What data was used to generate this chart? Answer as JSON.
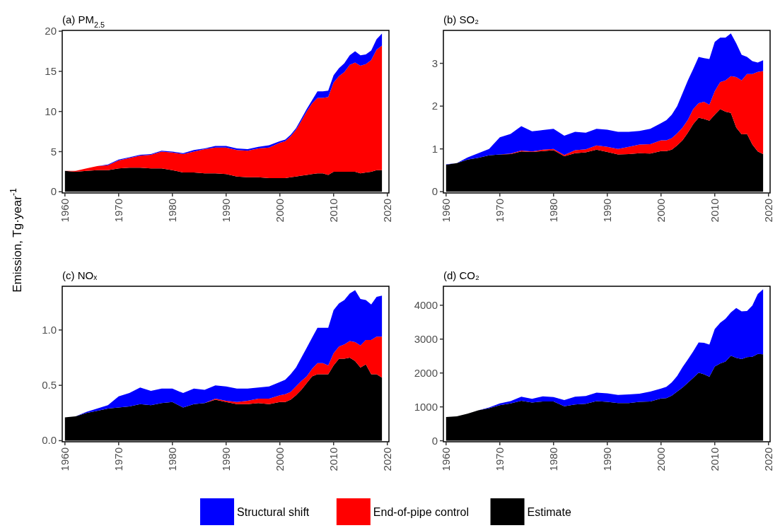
{
  "chart_data": [
    {
      "type": "area",
      "stacked": true,
      "title": "(a) PM$_{2.5}$",
      "ylabel": "Emission, Tg·year$^{-1}$",
      "legend": "bottom",
      "x": [
        1960,
        1962,
        1964,
        1966,
        1968,
        1970,
        1972,
        1974,
        1976,
        1978,
        1980,
        1982,
        1984,
        1986,
        1988,
        1990,
        1992,
        1994,
        1996,
        1998,
        2000,
        2001,
        2002,
        2003,
        2004,
        2005,
        2006,
        2007,
        2008,
        2009,
        2010,
        2011,
        2012,
        2013,
        2014,
        2015,
        2016,
        2017,
        2018,
        2019
      ],
      "xlim": [
        1959.5,
        2020.3
      ],
      "xticks": [
        1960,
        1970,
        1980,
        1990,
        2000,
        2010,
        2020
      ],
      "ylim": [
        -0.15,
        20.1
      ],
      "yticks": [
        0,
        5,
        10,
        15,
        20
      ],
      "series": [
        {
          "name": "Estimate",
          "color": "#000000",
          "values": [
            2.6,
            2.5,
            2.6,
            2.7,
            2.7,
            2.9,
            3.0,
            3.0,
            2.9,
            2.9,
            2.7,
            2.4,
            2.4,
            2.3,
            2.3,
            2.2,
            1.9,
            1.8,
            1.8,
            1.7,
            1.7,
            1.7,
            1.8,
            1.9,
            2.0,
            2.1,
            2.2,
            2.3,
            2.3,
            2.1,
            2.5,
            2.5,
            2.5,
            2.5,
            2.5,
            2.3,
            2.4,
            2.5,
            2.7,
            2.7
          ]
        },
        {
          "name": "End-of-pipe control",
          "color": "#ff0000",
          "values": [
            0,
            0.1,
            0.3,
            0.5,
            0.6,
            1.0,
            1.2,
            1.5,
            1.7,
            2.1,
            2.2,
            2.3,
            2.6,
            3.0,
            3.2,
            3.3,
            3.3,
            3.3,
            3.6,
            3.8,
            4.4,
            4.6,
            5.1,
            5.8,
            6.8,
            7.9,
            8.8,
            9.4,
            9.4,
            9.7,
            11.1,
            11.9,
            12.4,
            13.3,
            13.6,
            13.4,
            13.5,
            13.9,
            15.0,
            15.5
          ]
        },
        {
          "name": "Structural shift",
          "color": "#0000ff",
          "values": [
            0,
            0,
            0,
            0,
            0.1,
            0.1,
            0.1,
            0.1,
            0.1,
            0.1,
            0.1,
            0.1,
            0.2,
            0.1,
            0.2,
            0.2,
            0.2,
            0.2,
            0.2,
            0.3,
            0.2,
            0.2,
            0.2,
            0.2,
            0.3,
            0.3,
            0.4,
            0.8,
            0.8,
            0.8,
            0.9,
            1.0,
            1.1,
            1.2,
            1.4,
            1.3,
            1.2,
            1.2,
            1.3,
            1.5
          ]
        }
      ]
    },
    {
      "type": "area",
      "stacked": true,
      "title": "(b) SO₂",
      "x": [
        1960,
        1962,
        1964,
        1966,
        1968,
        1970,
        1972,
        1974,
        1976,
        1978,
        1980,
        1982,
        1984,
        1986,
        1988,
        1990,
        1992,
        1994,
        1996,
        1998,
        2000,
        2001,
        2002,
        2003,
        2004,
        2005,
        2006,
        2007,
        2008,
        2009,
        2010,
        2011,
        2012,
        2013,
        2014,
        2015,
        2016,
        2017,
        2018,
        2019
      ],
      "xlim": [
        1959.5,
        2020.3
      ],
      "xticks": [
        1960,
        1970,
        1980,
        1990,
        2000,
        2010,
        2020
      ],
      "ylim": [
        -0.03,
        3.77
      ],
      "yticks": [
        0,
        1,
        2,
        3
      ],
      "series": [
        {
          "color": "#000000",
          "values": [
            0.63,
            0.67,
            0.75,
            0.79,
            0.85,
            0.87,
            0.88,
            0.94,
            0.93,
            0.95,
            0.97,
            0.83,
            0.9,
            0.92,
            0.98,
            0.93,
            0.87,
            0.88,
            0.9,
            0.89,
            0.95,
            0.95,
            0.98,
            1.08,
            1.2,
            1.38,
            1.58,
            1.73,
            1.7,
            1.66,
            1.8,
            1.93,
            1.87,
            1.84,
            1.5,
            1.34,
            1.35,
            1.1,
            0.94,
            0.88
          ]
        },
        {
          "color": "#ff0000",
          "values": [
            0,
            0,
            0,
            0,
            0,
            0,
            0.01,
            0.02,
            0.01,
            0.03,
            0.03,
            0.03,
            0.07,
            0.07,
            0.1,
            0.12,
            0.13,
            0.17,
            0.2,
            0.22,
            0.25,
            0.25,
            0.27,
            0.28,
            0.3,
            0.3,
            0.35,
            0.34,
            0.4,
            0.37,
            0.55,
            0.63,
            0.73,
            0.86,
            1.18,
            1.26,
            1.4,
            1.65,
            1.86,
            1.94
          ]
        },
        {
          "color": "#0000ff",
          "values": [
            0.01,
            0,
            0.05,
            0.11,
            0.15,
            0.4,
            0.46,
            0.57,
            0.47,
            0.46,
            0.47,
            0.45,
            0.43,
            0.39,
            0.39,
            0.4,
            0.4,
            0.35,
            0.32,
            0.36,
            0.4,
            0.47,
            0.55,
            0.64,
            0.8,
            0.92,
            0.94,
            1.08,
            1.02,
            1.07,
            1.15,
            1.04,
            1.0,
            1.0,
            0.79,
            0.6,
            0.4,
            0.3,
            0.22,
            0.25
          ]
        }
      ]
    },
    {
      "type": "area",
      "stacked": true,
      "title": "(c) NOₓ",
      "x": [
        1960,
        1962,
        1964,
        1966,
        1968,
        1970,
        1972,
        1974,
        1976,
        1978,
        1980,
        1982,
        1984,
        1986,
        1988,
        1990,
        1992,
        1994,
        1996,
        1998,
        2000,
        2001,
        2002,
        2003,
        2004,
        2005,
        2006,
        2007,
        2008,
        2009,
        2010,
        2011,
        2012,
        2013,
        2014,
        2015,
        2016,
        2017,
        2018,
        2019
      ],
      "xlim": [
        1959.5,
        2020.3
      ],
      "xticks": [
        1960,
        1970,
        1980,
        1990,
        2000,
        2010,
        2020
      ],
      "ylim": [
        -0.01,
        1.395
      ],
      "yticks": [
        {
          "value": 0,
          "label": "0.0"
        },
        {
          "value": 0.5,
          "label": "0.5"
        },
        {
          "value": 1,
          "label": "1.0"
        }
      ],
      "series": [
        {
          "color": "#000000",
          "values": [
            0.21,
            0.22,
            0.25,
            0.27,
            0.29,
            0.3,
            0.31,
            0.33,
            0.32,
            0.34,
            0.35,
            0.3,
            0.33,
            0.34,
            0.37,
            0.35,
            0.33,
            0.33,
            0.34,
            0.33,
            0.35,
            0.35,
            0.37,
            0.41,
            0.46,
            0.52,
            0.58,
            0.6,
            0.6,
            0.6,
            0.68,
            0.74,
            0.74,
            0.75,
            0.72,
            0.66,
            0.69,
            0.6,
            0.6,
            0.57
          ]
        },
        {
          "color": "#ff0000",
          "values": [
            0,
            0,
            0,
            0,
            0,
            0,
            0,
            0,
            0,
            0,
            0,
            0,
            0,
            0,
            0.01,
            0.01,
            0.02,
            0.03,
            0.04,
            0.05,
            0.06,
            0.07,
            0.07,
            0.08,
            0.08,
            0.06,
            0.07,
            0.1,
            0.1,
            0.08,
            0.11,
            0.11,
            0.13,
            0.15,
            0.17,
            0.2,
            0.22,
            0.31,
            0.34,
            0.37
          ]
        },
        {
          "color": "#0000ff",
          "values": [
            0,
            0,
            0.01,
            0.02,
            0.03,
            0.1,
            0.12,
            0.15,
            0.13,
            0.13,
            0.12,
            0.13,
            0.14,
            0.12,
            0.12,
            0.13,
            0.12,
            0.11,
            0.1,
            0.11,
            0.12,
            0.13,
            0.16,
            0.17,
            0.21,
            0.26,
            0.28,
            0.32,
            0.32,
            0.34,
            0.39,
            0.39,
            0.4,
            0.43,
            0.47,
            0.42,
            0.36,
            0.32,
            0.36,
            0.37
          ]
        }
      ]
    },
    {
      "type": "area",
      "stacked": true,
      "title": "(d) CO₂",
      "x": [
        1960,
        1962,
        1964,
        1966,
        1968,
        1970,
        1972,
        1974,
        1976,
        1978,
        1980,
        1982,
        1984,
        1986,
        1988,
        1990,
        1992,
        1994,
        1996,
        1998,
        2000,
        2001,
        2002,
        2003,
        2004,
        2005,
        2006,
        2007,
        2008,
        2009,
        2010,
        2011,
        2012,
        2013,
        2014,
        2015,
        2016,
        2017,
        2018,
        2019
      ],
      "xlim": [
        1959.5,
        2020.3
      ],
      "xticks": [
        1960,
        1970,
        1980,
        1990,
        2000,
        2010,
        2020
      ],
      "ylim": [
        -30,
        4560
      ],
      "yticks": [
        0,
        1000,
        2000,
        3000,
        4000
      ],
      "series": [
        {
          "color": "#000000",
          "values": [
            700,
            720,
            800,
            900,
            960,
            1050,
            1100,
            1180,
            1130,
            1160,
            1160,
            1020,
            1070,
            1090,
            1170,
            1150,
            1110,
            1110,
            1150,
            1160,
            1250,
            1260,
            1330,
            1450,
            1570,
            1710,
            1860,
            2010,
            1960,
            1890,
            2190,
            2280,
            2340,
            2510,
            2450,
            2410,
            2470,
            2480,
            2560,
            2550
          ]
        },
        {
          "color": "#0000ff",
          "values": [
            0,
            0,
            0,
            0,
            20,
            50,
            70,
            120,
            110,
            150,
            130,
            180,
            230,
            230,
            250,
            250,
            240,
            260,
            240,
            290,
            290,
            330,
            390,
            460,
            600,
            690,
            780,
            890,
            930,
            950,
            1110,
            1200,
            1260,
            1280,
            1470,
            1410,
            1360,
            1510,
            1770,
            1920
          ]
        }
      ]
    }
  ]
}
